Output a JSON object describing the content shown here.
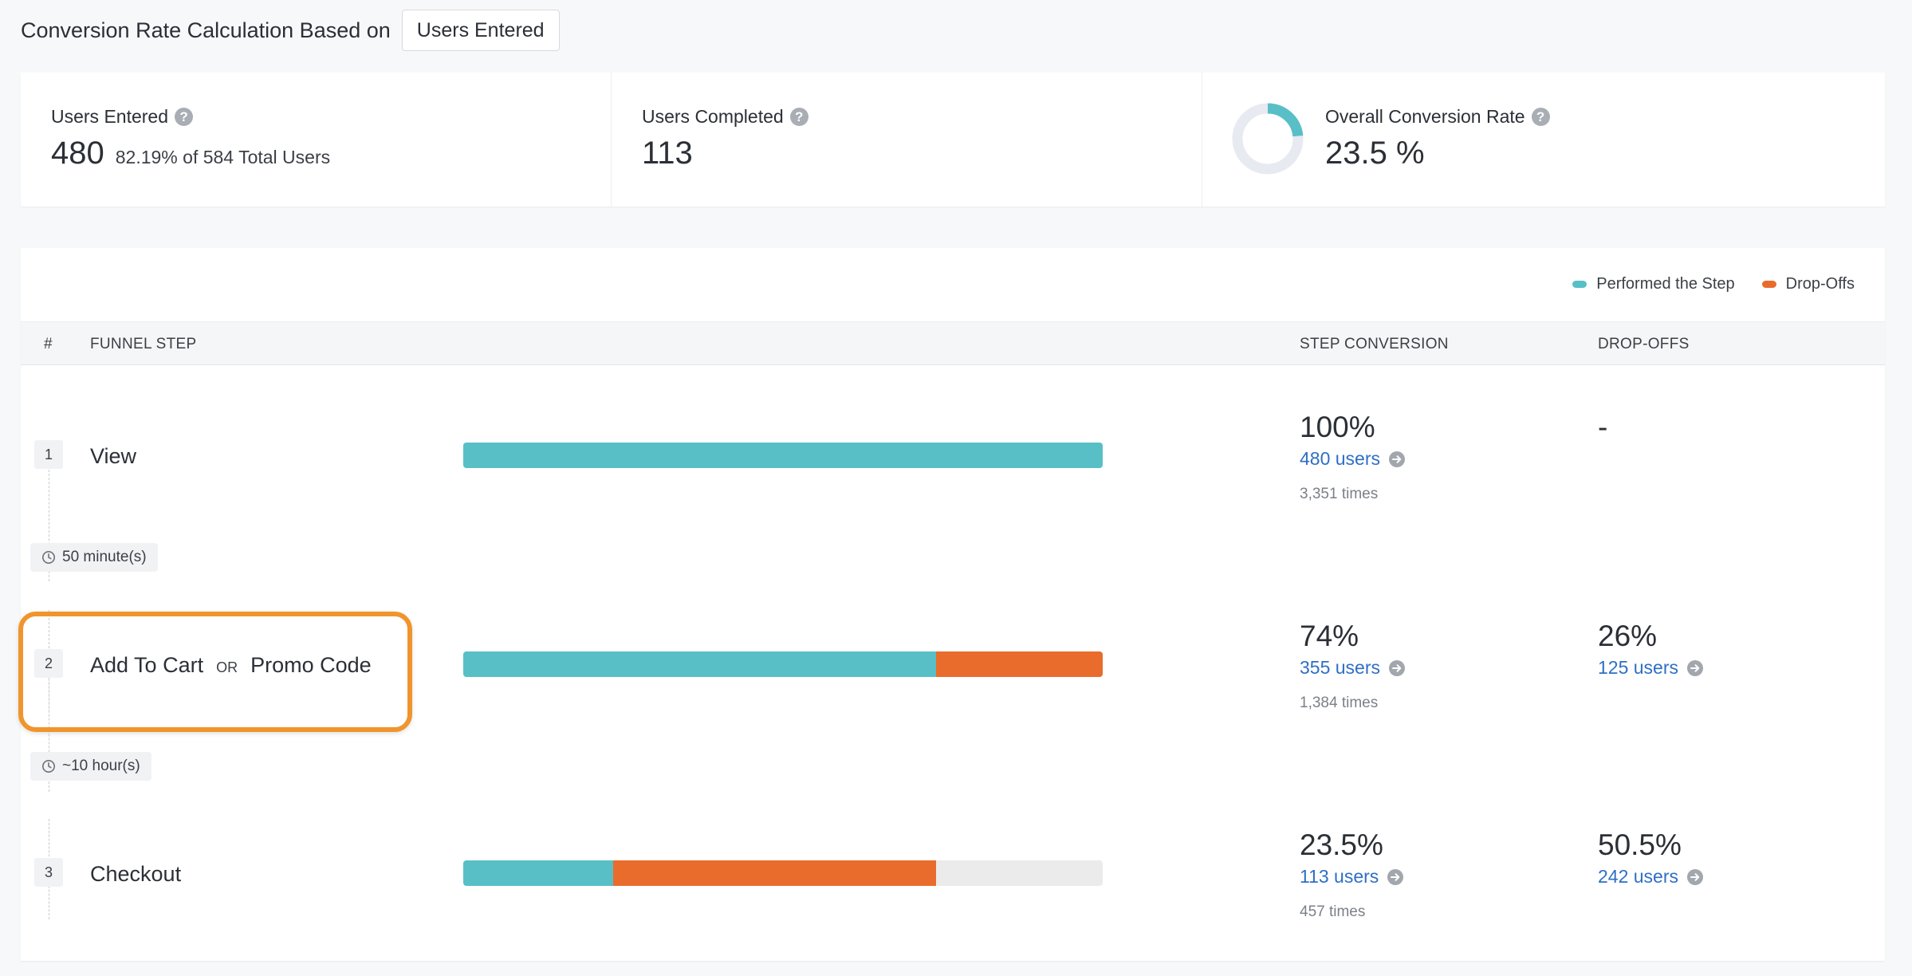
{
  "header": {
    "title": "Conversion Rate Calculation Based on",
    "basis_selected": "Users Entered"
  },
  "summary": {
    "users_entered": {
      "label": "Users Entered",
      "value": "480",
      "sub": "82.19% of 584 Total Users"
    },
    "users_completed": {
      "label": "Users Completed",
      "value": "113"
    },
    "overall_conversion": {
      "label": "Overall Conversion Rate",
      "value": "23.5 %",
      "fraction": 0.235
    }
  },
  "legend": {
    "performed": "Performed the Step",
    "dropoffs": "Drop-Offs"
  },
  "colors": {
    "performed": "#58bfc7",
    "dropoff": "#e96c2c",
    "remainder": "#ebebeb",
    "highlight": "#f0952d",
    "link": "#2e6fc4"
  },
  "table": {
    "col_num": "#",
    "col_step": "FUNNEL STEP",
    "col_conversion": "STEP CONVERSION",
    "col_dropoffs": "DROP-OFFS"
  },
  "steps": [
    {
      "num": "1",
      "name": "View",
      "conversion_pct": "100%",
      "users": "480 users",
      "times": "3,351 times",
      "dropoff_pct": "-",
      "performed_fraction": 1.0,
      "dropoff_fraction": 0.0
    },
    {
      "num": "2",
      "name": "Add To Cart",
      "or_label": "OR",
      "alt_name": "Promo Code",
      "conversion_pct": "74%",
      "users": "355 users",
      "times": "1,384 times",
      "dropoff_pct": "26%",
      "dropoff_users": "125 users",
      "performed_fraction": 0.74,
      "dropoff_fraction": 0.26
    },
    {
      "num": "3",
      "name": "Checkout",
      "conversion_pct": "23.5%",
      "users": "113 users",
      "times": "457 times",
      "dropoff_pct": "50.5%",
      "dropoff_users": "242 users",
      "performed_fraction": 0.235,
      "dropoff_fraction": 0.505
    }
  ],
  "gaps": [
    {
      "label": "50 minute(s)"
    },
    {
      "label": "~10 hour(s)"
    }
  ]
}
